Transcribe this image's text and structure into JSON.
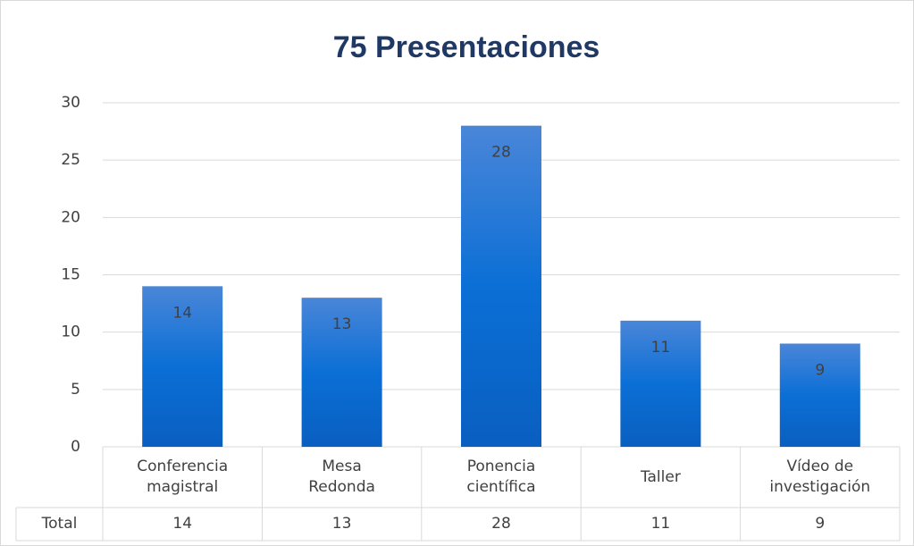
{
  "chart_data": {
    "type": "bar",
    "title": "75 Presentaciones",
    "categories": [
      "Conferencia magistral",
      "Mesa Redonda",
      "Ponencia científica",
      "Taller",
      "Vídeo de investigación"
    ],
    "series": [
      {
        "name": "Total",
        "color": "#0b6fd6",
        "values": [
          14,
          13,
          28,
          11,
          9
        ]
      }
    ],
    "ylim": [
      0,
      30
    ],
    "yticks": [
      0,
      5,
      10,
      15,
      20,
      25,
      30
    ],
    "grid": true,
    "data_table": true
  }
}
